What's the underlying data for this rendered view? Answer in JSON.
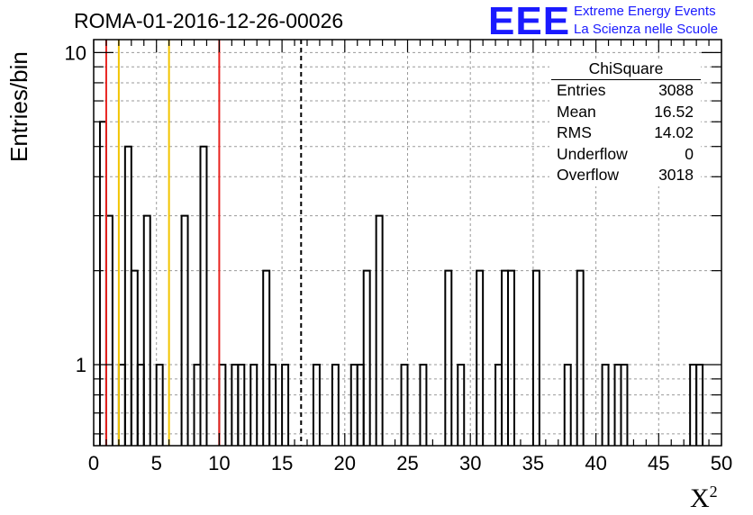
{
  "header": {
    "title": "ROMA-01-2016-12-26-00026",
    "logo_mark": "EEE",
    "logo_line1": "Extreme Energy Events",
    "logo_line2": "La Scienza nelle Scuole"
  },
  "stats_box": {
    "name": "ChiSquare",
    "rows": [
      {
        "label": "Entries",
        "value": "3088"
      },
      {
        "label": "Mean",
        "value": "16.52"
      },
      {
        "label": "RMS",
        "value": "14.02"
      },
      {
        "label": "Underflow",
        "value": "0"
      },
      {
        "label": "Overflow",
        "value": "3018"
      }
    ]
  },
  "colors": {
    "histogram": "#000000",
    "red_line": "#e8231f",
    "yellow_line": "#f2c400",
    "mean_line": "#000000",
    "grid": "#9a9a9a",
    "logo": "#1a1aff"
  },
  "chart_data": {
    "type": "histogram",
    "title": "ROMA-01-2016-12-26-00026",
    "xlabel": "X",
    "xlabel_superscript": "2",
    "ylabel": "Entries/bin",
    "xlim": [
      0,
      50
    ],
    "ylim": [
      0.55,
      11
    ],
    "y_scale": "log",
    "grid": true,
    "bin_width": 0.5,
    "x_ticks": [
      "0",
      "5",
      "10",
      "15",
      "20",
      "25",
      "30",
      "35",
      "40",
      "45",
      "50"
    ],
    "y_ticks": [
      "1",
      "10"
    ],
    "bins": [
      {
        "x": 0.5,
        "y": 6
      },
      {
        "x": 1.0,
        "y": 3
      },
      {
        "x": 2.0,
        "y": 1
      },
      {
        "x": 2.5,
        "y": 5
      },
      {
        "x": 3.0,
        "y": 2
      },
      {
        "x": 3.5,
        "y": 1
      },
      {
        "x": 4.0,
        "y": 3
      },
      {
        "x": 5.0,
        "y": 1
      },
      {
        "x": 7.0,
        "y": 3
      },
      {
        "x": 8.0,
        "y": 1
      },
      {
        "x": 8.5,
        "y": 5
      },
      {
        "x": 10.0,
        "y": 1
      },
      {
        "x": 11.0,
        "y": 1
      },
      {
        "x": 11.5,
        "y": 1
      },
      {
        "x": 12.5,
        "y": 1
      },
      {
        "x": 13.5,
        "y": 2
      },
      {
        "x": 14.0,
        "y": 1
      },
      {
        "x": 15.0,
        "y": 1
      },
      {
        "x": 17.5,
        "y": 1
      },
      {
        "x": 19.0,
        "y": 1
      },
      {
        "x": 20.5,
        "y": 1
      },
      {
        "x": 21.0,
        "y": 1
      },
      {
        "x": 21.5,
        "y": 2
      },
      {
        "x": 22.5,
        "y": 3
      },
      {
        "x": 24.5,
        "y": 1
      },
      {
        "x": 26.0,
        "y": 1
      },
      {
        "x": 28.0,
        "y": 2
      },
      {
        "x": 29.0,
        "y": 1
      },
      {
        "x": 30.5,
        "y": 2
      },
      {
        "x": 32.0,
        "y": 1
      },
      {
        "x": 32.5,
        "y": 2
      },
      {
        "x": 33.0,
        "y": 2
      },
      {
        "x": 35.0,
        "y": 2
      },
      {
        "x": 37.5,
        "y": 1
      },
      {
        "x": 38.5,
        "y": 2
      },
      {
        "x": 40.5,
        "y": 1
      },
      {
        "x": 41.5,
        "y": 1
      },
      {
        "x": 42.0,
        "y": 1
      },
      {
        "x": 47.5,
        "y": 1
      },
      {
        "x": 48.0,
        "y": 1
      }
    ],
    "vertical_lines": [
      {
        "x": 1,
        "color": "red"
      },
      {
        "x": 2,
        "color": "yellow"
      },
      {
        "x": 6,
        "color": "yellow"
      },
      {
        "x": 10,
        "color": "red"
      },
      {
        "x": 16.52,
        "color": "black",
        "style": "dashed"
      }
    ]
  }
}
